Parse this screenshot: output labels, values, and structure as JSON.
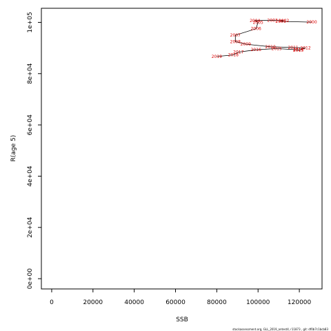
{
  "chart_data": {
    "type": "line",
    "xlabel": "SSB",
    "ylabel": "R(age 5)",
    "xlim": [
      -5000,
      131000
    ],
    "ylim": [
      -4000,
      105500
    ],
    "x_ticks": [
      0,
      20000,
      40000,
      60000,
      80000,
      100000,
      120000
    ],
    "y_ticks": [
      0,
      20000,
      40000,
      60000,
      80000,
      100000
    ],
    "y_tick_labels": [
      "0e+00",
      "2e+04",
      "4e+04",
      "6e+04",
      "8e+04",
      "1e+05"
    ],
    "grid": false,
    "line_color": "#000000",
    "label_color": "#dd0000",
    "points": [
      {
        "year": "2000",
        "ssb": 126000,
        "r": 100100
      },
      {
        "year": "2001",
        "ssb": 111000,
        "r": 100400
      },
      {
        "year": "2002",
        "ssb": 112500,
        "r": 100700
      },
      {
        "year": "2003",
        "ssb": 107000,
        "r": 100800
      },
      {
        "year": "2004",
        "ssb": 98500,
        "r": 100700
      },
      {
        "year": "2005",
        "ssb": 100000,
        "r": 100000
      },
      {
        "year": "2006",
        "ssb": 99000,
        "r": 97500
      },
      {
        "year": "2007",
        "ssb": 89000,
        "r": 95000
      },
      {
        "year": "2008",
        "ssb": 89000,
        "r": 92500
      },
      {
        "year": "2009",
        "ssb": 94000,
        "r": 91500
      },
      {
        "year": "2010",
        "ssb": 106000,
        "r": 90500
      },
      {
        "year": "2011",
        "ssb": 117000,
        "r": 90200
      },
      {
        "year": "2012",
        "ssb": 123000,
        "r": 90000
      },
      {
        "year": "2013",
        "ssb": 119500,
        "r": 89100
      },
      {
        "year": "2014",
        "ssb": 119500,
        "r": 89300
      },
      {
        "year": "2015",
        "ssb": 109000,
        "r": 89800
      },
      {
        "year": "2016",
        "ssb": 99000,
        "r": 89300
      },
      {
        "year": "2017",
        "ssb": 90500,
        "r": 88400
      },
      {
        "year": "2018",
        "ssb": 88000,
        "r": 87300
      },
      {
        "year": "2019",
        "ssb": 80000,
        "r": 86700
      }
    ]
  },
  "footer": "stockassessment.org, GLL_2019_antest4, r11873 , git: df0b7c1bcb83"
}
